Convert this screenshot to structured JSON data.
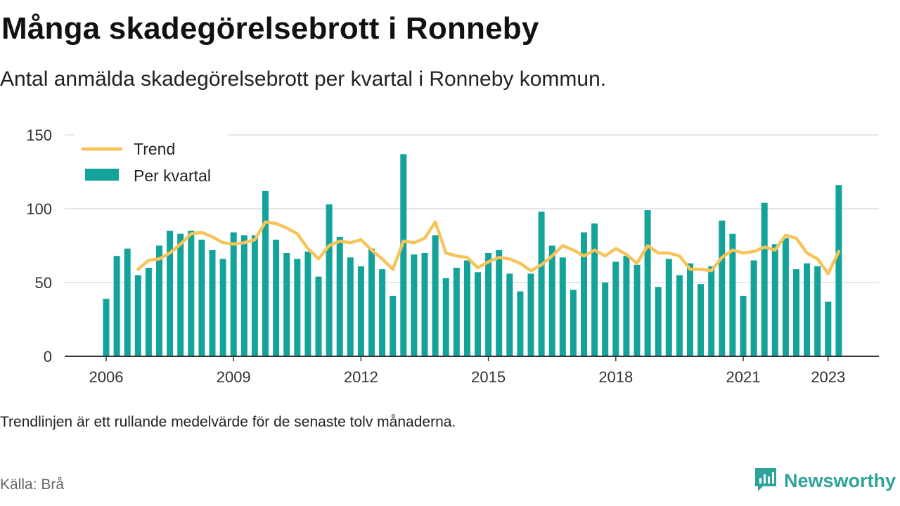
{
  "title": "Många skadegörelsebrott i Ronneby",
  "subtitle": "Antal anmälda skadegörelsebrott per kvartal i Ronneby kommun.",
  "note": "Trendlinjen är ett rullande medelvärde för de senaste tolv månaderna.",
  "source": "Källa: Brå",
  "brand": {
    "name": "Newsworthy",
    "icon": "newsworthy-logo-icon",
    "color": "#2ea39a"
  },
  "colors": {
    "bars": "#13a39a",
    "trend": "#f7c45a",
    "grid": "#dddddd",
    "axis": "#333333"
  },
  "chart_data": {
    "type": "bar",
    "ylim": [
      0,
      150
    ],
    "yticks": [
      0,
      50,
      100,
      150
    ],
    "xticks": [
      "2006",
      "2009",
      "2012",
      "2015",
      "2018",
      "2021",
      "2023"
    ],
    "legend_position": "top-left",
    "grid": true,
    "series": [
      {
        "name": "Per kvartal",
        "type": "bar",
        "x": [
          "2006Q1",
          "2006Q2",
          "2006Q3",
          "2006Q4",
          "2007Q1",
          "2007Q2",
          "2007Q3",
          "2007Q4",
          "2008Q1",
          "2008Q2",
          "2008Q3",
          "2008Q4",
          "2009Q1",
          "2009Q2",
          "2009Q3",
          "2009Q4",
          "2010Q1",
          "2010Q2",
          "2010Q3",
          "2010Q4",
          "2011Q1",
          "2011Q2",
          "2011Q3",
          "2011Q4",
          "2012Q1",
          "2012Q2",
          "2012Q3",
          "2012Q4",
          "2013Q1",
          "2013Q2",
          "2013Q3",
          "2013Q4",
          "2014Q1",
          "2014Q2",
          "2014Q3",
          "2014Q4",
          "2015Q1",
          "2015Q2",
          "2015Q3",
          "2015Q4",
          "2016Q1",
          "2016Q2",
          "2016Q3",
          "2016Q4",
          "2017Q1",
          "2017Q2",
          "2017Q3",
          "2017Q4",
          "2018Q1",
          "2018Q2",
          "2018Q3",
          "2018Q4",
          "2019Q1",
          "2019Q2",
          "2019Q3",
          "2019Q4",
          "2020Q1",
          "2020Q2",
          "2020Q3",
          "2020Q4",
          "2021Q1",
          "2021Q2",
          "2021Q3",
          "2021Q4",
          "2022Q1",
          "2022Q2",
          "2022Q3",
          "2022Q4",
          "2023Q1",
          "2023Q2"
        ],
        "values": [
          39,
          68,
          73,
          55,
          60,
          75,
          85,
          83,
          85,
          79,
          72,
          66,
          84,
          82,
          82,
          112,
          79,
          70,
          66,
          71,
          54,
          103,
          81,
          67,
          61,
          73,
          59,
          41,
          137,
          69,
          70,
          82,
          53,
          60,
          65,
          57,
          70,
          72,
          56,
          44,
          56,
          98,
          75,
          67,
          45,
          84,
          90,
          50,
          64,
          68,
          62,
          99,
          47,
          66,
          55,
          63,
          49,
          61,
          92,
          83,
          41,
          65,
          104,
          76,
          80,
          59,
          63,
          61,
          37,
          116
        ]
      },
      {
        "name": "Trend",
        "type": "line",
        "x": [
          "2006Q4",
          "2007Q1",
          "2007Q2",
          "2007Q3",
          "2007Q4",
          "2008Q1",
          "2008Q2",
          "2008Q3",
          "2008Q4",
          "2009Q1",
          "2009Q2",
          "2009Q3",
          "2009Q4",
          "2010Q1",
          "2010Q2",
          "2010Q3",
          "2010Q4",
          "2011Q1",
          "2011Q2",
          "2011Q3",
          "2011Q4",
          "2012Q1",
          "2012Q2",
          "2012Q3",
          "2012Q4",
          "2013Q1",
          "2013Q2",
          "2013Q3",
          "2013Q4",
          "2014Q1",
          "2014Q2",
          "2014Q3",
          "2014Q4",
          "2015Q1",
          "2015Q2",
          "2015Q3",
          "2015Q4",
          "2016Q1",
          "2016Q2",
          "2016Q3",
          "2016Q4",
          "2017Q1",
          "2017Q2",
          "2017Q3",
          "2017Q4",
          "2018Q1",
          "2018Q2",
          "2018Q3",
          "2018Q4",
          "2019Q1",
          "2019Q2",
          "2019Q3",
          "2019Q4",
          "2020Q1",
          "2020Q2",
          "2020Q3",
          "2020Q4",
          "2021Q1",
          "2021Q2",
          "2021Q3",
          "2021Q4",
          "2022Q1",
          "2022Q2",
          "2022Q3",
          "2022Q4",
          "2023Q1",
          "2023Q2"
        ],
        "values": [
          59,
          65,
          66,
          70,
          76,
          83,
          84,
          81,
          77,
          76,
          77,
          79,
          91,
          90,
          87,
          83,
          73,
          66,
          75,
          78,
          77,
          79,
          72,
          66,
          59,
          78,
          77,
          80,
          91,
          70,
          68,
          67,
          60,
          64,
          67,
          66,
          63,
          58,
          62,
          68,
          75,
          72,
          68,
          72,
          68,
          73,
          69,
          63,
          75,
          70,
          70,
          68,
          59,
          59,
          58,
          67,
          72,
          70,
          71,
          74,
          72,
          82,
          80,
          70,
          66,
          56,
          71
        ]
      }
    ]
  }
}
